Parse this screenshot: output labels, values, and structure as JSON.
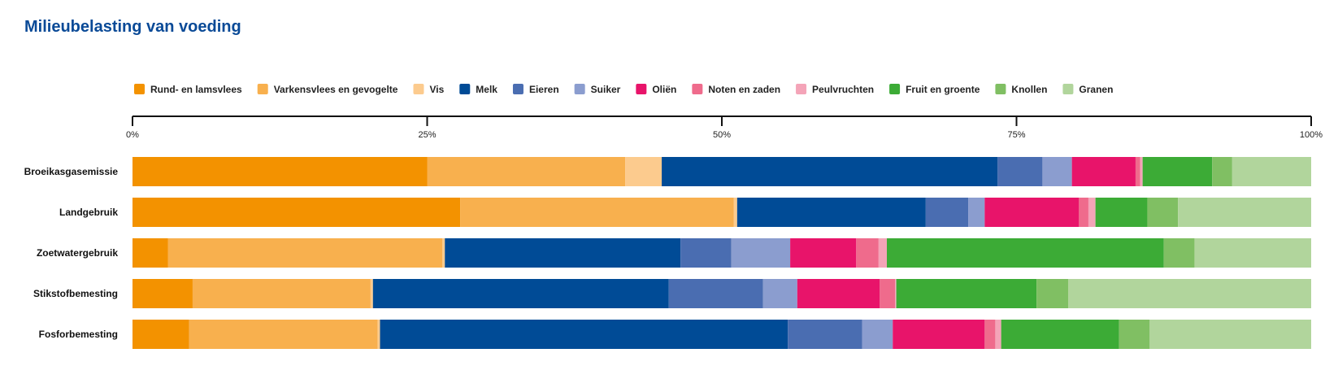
{
  "chart_data": {
    "type": "bar",
    "orientation": "horizontal",
    "stacked": true,
    "title": "Milieubelasting van voeding",
    "xlim": [
      0,
      100
    ],
    "x_ticks": [
      "0%",
      "25%",
      "50%",
      "75%",
      "100%"
    ],
    "legend_position": "top",
    "categories": [
      "Broeikasgasemissie",
      "Landgebruik",
      "Zoetwatergebruik",
      "Stikstofbemesting",
      "Fosforbemesting"
    ],
    "series": [
      {
        "name": "Rund- en lamsvlees",
        "color": "#f39200",
        "values": [
          25.0,
          27.8,
          3.0,
          5.1,
          4.8
        ]
      },
      {
        "name": "Varkensvlees en gevogelte",
        "color": "#f8b04e",
        "values": [
          16.8,
          23.2,
          23.3,
          15.1,
          16.0
        ]
      },
      {
        "name": "Vis",
        "color": "#fccb8e",
        "values": [
          3.1,
          0.3,
          0.2,
          0.2,
          0.2
        ]
      },
      {
        "name": "Melk",
        "color": "#004b96",
        "values": [
          28.5,
          16.0,
          20.0,
          25.1,
          34.6
        ]
      },
      {
        "name": "Eieren",
        "color": "#4a6db1",
        "values": [
          3.8,
          3.6,
          4.3,
          8.0,
          6.3
        ]
      },
      {
        "name": "Suiker",
        "color": "#8b9dcf",
        "values": [
          2.5,
          1.4,
          5.0,
          2.9,
          2.6
        ]
      },
      {
        "name": "Oliën",
        "color": "#e8146a",
        "values": [
          5.4,
          8.0,
          5.6,
          7.0,
          7.8
        ]
      },
      {
        "name": "Noten en zaden",
        "color": "#ef6b8c",
        "values": [
          0.4,
          0.8,
          1.9,
          1.3,
          0.9
        ]
      },
      {
        "name": "Peulvruchten",
        "color": "#f4a4b8",
        "values": [
          0.2,
          0.6,
          0.7,
          0.1,
          0.5
        ]
      },
      {
        "name": "Fruit en groente",
        "color": "#3cab36",
        "values": [
          5.9,
          4.4,
          23.5,
          11.9,
          10.0
        ]
      },
      {
        "name": "Knollen",
        "color": "#80bf63",
        "values": [
          1.7,
          2.6,
          2.6,
          2.7,
          2.6
        ]
      },
      {
        "name": "Granen",
        "color": "#b1d59c",
        "values": [
          6.7,
          11.3,
          9.9,
          20.6,
          13.7
        ]
      }
    ]
  }
}
